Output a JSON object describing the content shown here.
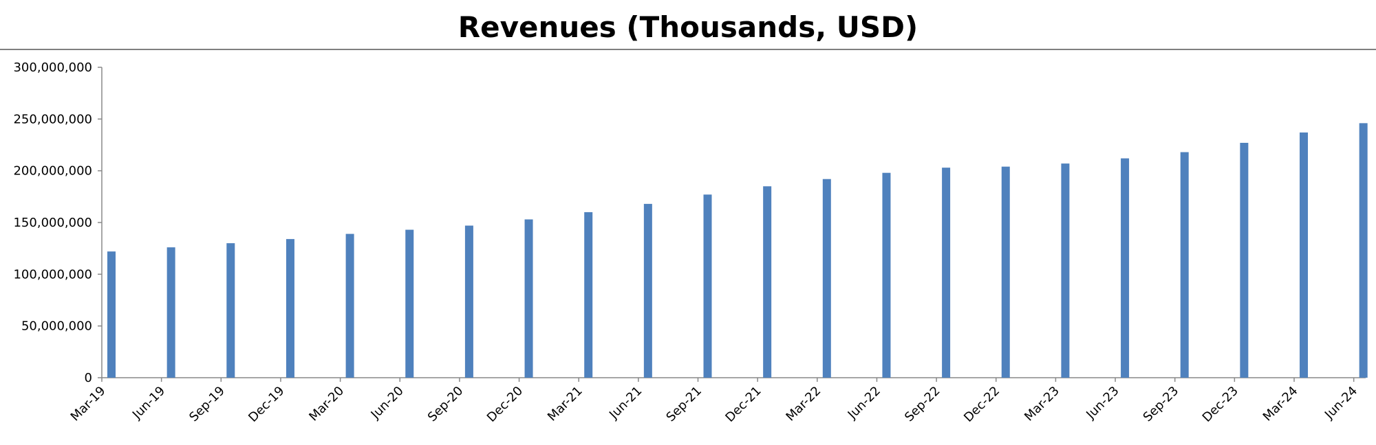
{
  "chart_data": {
    "type": "bar",
    "title": "Revenues (Thousands, USD)",
    "xlabel": "",
    "ylabel": "",
    "ylim": [
      0,
      300000000
    ],
    "y_ticks": [
      "0",
      "50,000,000",
      "100,000,000",
      "150,000,000",
      "200,000,000",
      "250,000,000",
      "300,000,000"
    ],
    "y_tick_values": [
      0,
      50000000,
      100000000,
      150000000,
      200000000,
      250000000,
      300000000
    ],
    "grid": false,
    "legend": "none",
    "categories": [
      "Mar-19",
      "Jun-19",
      "Sep-19",
      "Dec-19",
      "Mar-20",
      "Jun-20",
      "Sep-20",
      "Dec-20",
      "Mar-21",
      "Jun-21",
      "Sep-21",
      "Dec-21",
      "Mar-22",
      "Jun-22",
      "Sep-22",
      "Dec-22",
      "Mar-23",
      "Jun-23",
      "Sep-23",
      "Dec-23",
      "Mar-24",
      "Jun-24"
    ],
    "values": [
      122000000,
      126000000,
      130000000,
      134000000,
      139000000,
      143000000,
      147000000,
      153000000,
      160000000,
      168000000,
      177000000,
      185000000,
      192000000,
      198000000,
      203000000,
      204000000,
      207000000,
      212000000,
      218000000,
      227000000,
      237000000,
      246000000
    ],
    "bar_color": "#4f81bd",
    "axis_color": "#888888"
  }
}
